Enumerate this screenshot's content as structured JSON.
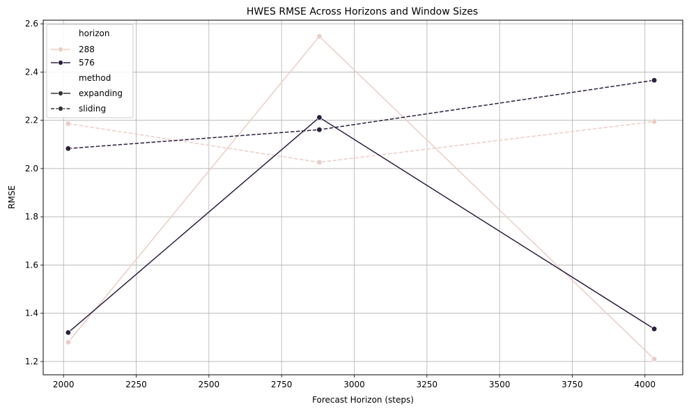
{
  "chart_data": {
    "type": "line",
    "title": "HWES RMSE Across Horizons and Window Sizes",
    "xlabel": "Forecast Horizon (steps)",
    "ylabel": "RMSE",
    "xlim": [
      1930,
      4130
    ],
    "ylim": [
      1.145,
      2.615
    ],
    "xticks": [
      2000,
      2250,
      2500,
      2750,
      3000,
      3250,
      3500,
      3750,
      4000
    ],
    "yticks": [
      1.2,
      1.4,
      1.6,
      1.8,
      2.0,
      2.2,
      2.4,
      2.6
    ],
    "grid": true,
    "legend_position": "top-left",
    "legend": {
      "hue_title": "horizon",
      "style_title": "method",
      "hue_entries": [
        {
          "label": "288",
          "color": "#ebcdc6"
        },
        {
          "label": "576",
          "color": "#2c1e3d"
        }
      ],
      "style_entries": [
        {
          "label": "expanding",
          "dash": "solid",
          "color": "#333333"
        },
        {
          "label": "sliding",
          "dash": "dashed",
          "color": "#333333"
        }
      ]
    },
    "series": [
      {
        "horizon": "288",
        "method": "expanding",
        "color": "#ebcdc6",
        "dash": "solid",
        "x": [
          2016,
          2880,
          4032
        ],
        "y": [
          1.28,
          2.548,
          1.21
        ]
      },
      {
        "horizon": "288",
        "method": "sliding",
        "color": "#ebcdc6",
        "dash": "dashed",
        "x": [
          2016,
          2880,
          4032
        ],
        "y": [
          2.186,
          2.026,
          2.195
        ]
      },
      {
        "horizon": "576",
        "method": "expanding",
        "color": "#2c1e3d",
        "dash": "solid",
        "x": [
          2016,
          2880,
          4032
        ],
        "y": [
          1.32,
          2.212,
          1.335
        ]
      },
      {
        "horizon": "576",
        "method": "sliding",
        "color": "#2c1e3d",
        "dash": "dashed",
        "x": [
          2016,
          2880,
          4032
        ],
        "y": [
          2.083,
          2.161,
          2.366
        ]
      }
    ]
  }
}
